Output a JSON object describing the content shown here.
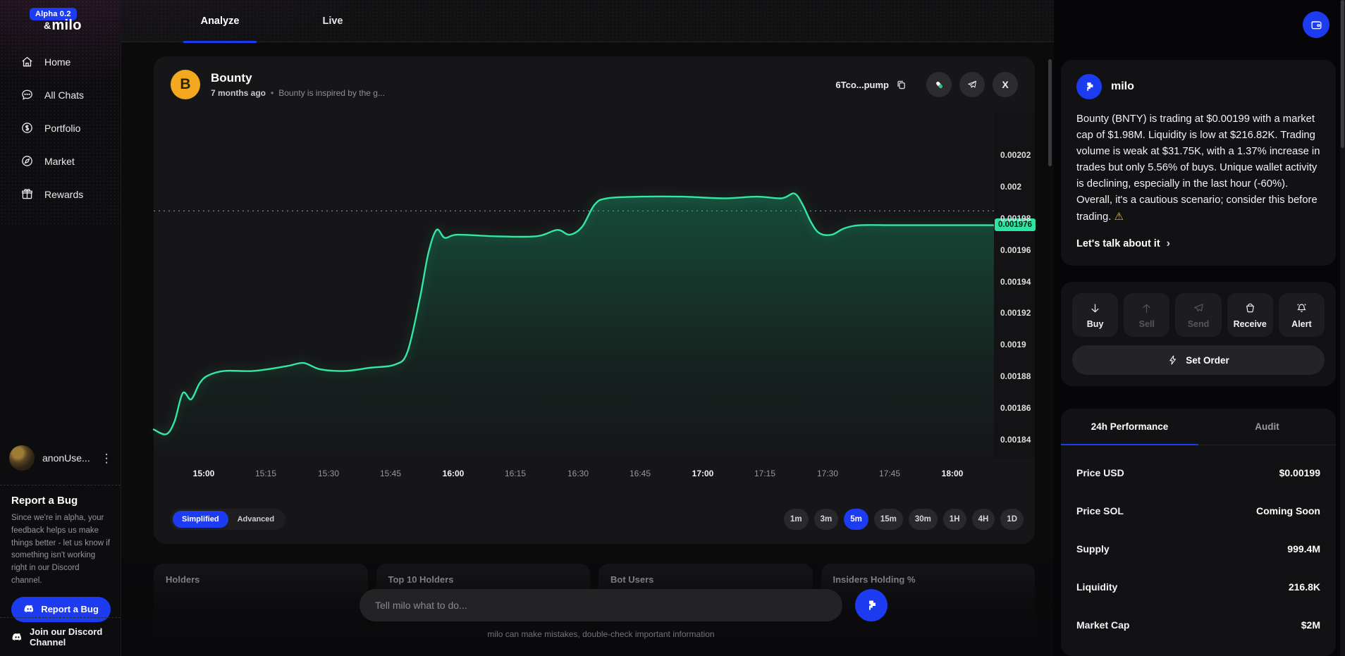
{
  "colors": {
    "accent_blue": "#1d3bf0",
    "chart_green": "#35e8a1",
    "price_badge_bg": "#2fe3a0",
    "token_orange": "#f3a81f"
  },
  "app": {
    "alpha_badge": "Alpha 0.2",
    "logo_amp": "&",
    "logo_name": "milo"
  },
  "sidebar": {
    "items": [
      {
        "label": "Home"
      },
      {
        "label": "All Chats"
      },
      {
        "label": "Portfolio"
      },
      {
        "label": "Market"
      },
      {
        "label": "Rewards"
      }
    ],
    "user": {
      "name": "anonUse...",
      "menu_glyph": "⋮"
    },
    "report_bug": {
      "title": "Report a Bug",
      "body": "Since we're in alpha, your feedback helps us make things better - let us know if something isn't working right in our Discord channel.",
      "button_label": "Report a Bug"
    },
    "discord_label": "Join our Discord Channel"
  },
  "topbar": {
    "tab_analyze": "Analyze",
    "tab_live": "Live"
  },
  "token": {
    "initial": "B",
    "name": "Bounty",
    "age": "7 months ago",
    "separator": "•",
    "description": "Bounty is inspired by the g...",
    "address": "6Tco...pump",
    "x_glyph": "X"
  },
  "chart": {
    "mode_simplified": "Simplified",
    "mode_advanced": "Advanced",
    "ranges": [
      "1m",
      "3m",
      "5m",
      "15m",
      "30m",
      "1H",
      "4H",
      "1D"
    ],
    "active_range": "5m"
  },
  "chart_data": {
    "type": "area",
    "title": "Bounty (BNTY) price, 5m view",
    "line_color": "#35e8a1",
    "xlim": [
      -12,
      190
    ],
    "ylim": [
      0.001829,
      0.002047
    ],
    "x_ticks": [
      {
        "label": "15:00",
        "t": 0,
        "bold": true
      },
      {
        "label": "15:15",
        "t": 15,
        "bold": false
      },
      {
        "label": "15:30",
        "t": 30,
        "bold": false
      },
      {
        "label": "15:45",
        "t": 45,
        "bold": false
      },
      {
        "label": "16:00",
        "t": 60,
        "bold": true
      },
      {
        "label": "16:15",
        "t": 75,
        "bold": false
      },
      {
        "label": "16:30",
        "t": 90,
        "bold": false
      },
      {
        "label": "16:45",
        "t": 105,
        "bold": false
      },
      {
        "label": "17:00",
        "t": 120,
        "bold": true
      },
      {
        "label": "17:15",
        "t": 135,
        "bold": false
      },
      {
        "label": "17:30",
        "t": 150,
        "bold": false
      },
      {
        "label": "17:45",
        "t": 165,
        "bold": false
      },
      {
        "label": "18:00",
        "t": 180,
        "bold": true
      }
    ],
    "y_ticks": [
      {
        "label": "0.00202",
        "value": 0.00202
      },
      {
        "label": "0.002",
        "value": 0.002
      },
      {
        "label": "0.00198",
        "value": 0.00198
      },
      {
        "label": "0.00196",
        "value": 0.00196
      },
      {
        "label": "0.00194",
        "value": 0.00194
      },
      {
        "label": "0.00192",
        "value": 0.00192
      },
      {
        "label": "0.0019",
        "value": 0.0019
      },
      {
        "label": "0.00188",
        "value": 0.00188
      },
      {
        "label": "0.00186",
        "value": 0.00186
      },
      {
        "label": "0.00184",
        "value": 0.00184
      }
    ],
    "reference_price": 0.001985,
    "current_price": {
      "label": "0.001976",
      "value": 0.001976
    },
    "points": [
      [
        -12,
        0.001847
      ],
      [
        -9,
        0.001844
      ],
      [
        -7,
        0.001852
      ],
      [
        -5,
        0.00187
      ],
      [
        -3,
        0.001866
      ],
      [
        -1,
        0.001876
      ],
      [
        1,
        0.001881
      ],
      [
        5,
        0.001884
      ],
      [
        12,
        0.001884
      ],
      [
        20,
        0.001887
      ],
      [
        24,
        0.001889
      ],
      [
        28,
        0.001885
      ],
      [
        34,
        0.001884
      ],
      [
        40,
        0.001886
      ],
      [
        46,
        0.001888
      ],
      [
        49,
        0.001896
      ],
      [
        52,
        0.00193
      ],
      [
        54,
        0.001958
      ],
      [
        56,
        0.001973
      ],
      [
        58,
        0.001968
      ],
      [
        61,
        0.00197
      ],
      [
        70,
        0.001969
      ],
      [
        80,
        0.001969
      ],
      [
        85,
        0.001973
      ],
      [
        88,
        0.00197
      ],
      [
        91,
        0.001975
      ],
      [
        94,
        0.001989
      ],
      [
        97,
        0.001993
      ],
      [
        105,
        0.001994
      ],
      [
        115,
        0.001994
      ],
      [
        125,
        0.001993
      ],
      [
        133,
        0.001994
      ],
      [
        139,
        0.001993
      ],
      [
        142,
        0.001996
      ],
      [
        144,
        0.001989
      ],
      [
        146,
        0.001978
      ],
      [
        148,
        0.001971
      ],
      [
        151,
        0.00197
      ],
      [
        154,
        0.001974
      ],
      [
        158,
        0.001976
      ],
      [
        166,
        0.001976
      ],
      [
        175,
        0.001976
      ],
      [
        183,
        0.001976
      ],
      [
        190,
        0.001976
      ]
    ]
  },
  "panels": [
    {
      "title": "Holders"
    },
    {
      "title": "Top 10 Holders"
    },
    {
      "title": "Bot Users"
    },
    {
      "title": "Insiders Holding %"
    }
  ],
  "chat": {
    "placeholder": "Tell milo what to do...",
    "disclaimer": "milo can make mistakes, double-check important information"
  },
  "assistant": {
    "name": "milo",
    "summary": "Bounty (BNTY) is trading at $0.00199 with a market cap of $1.98M. Liquidity is low at $216.82K. Trading volume is weak at $31.75K, with a 1.37% increase in trades but only 5.56% of buys. Unique wallet activity is declining, especially in the last hour (-60%). Overall, it's a cautious scenario; consider this before trading.",
    "warning_icon": "⚠",
    "cta": "Let's talk about it",
    "cta_chevron": "›"
  },
  "actions": {
    "buttons": [
      {
        "label": "Buy",
        "enabled": true
      },
      {
        "label": "Sell",
        "enabled": false
      },
      {
        "label": "Send",
        "enabled": false
      },
      {
        "label": "Receive",
        "enabled": true
      },
      {
        "label": "Alert",
        "enabled": true
      }
    ],
    "set_order_label": "Set Order"
  },
  "stats": {
    "tabs": [
      {
        "label": "24h Performance"
      },
      {
        "label": "Audit"
      }
    ],
    "rows": [
      {
        "label": "Price USD",
        "value": "$0.00199"
      },
      {
        "label": "Price SOL",
        "value": "Coming Soon"
      },
      {
        "label": "Supply",
        "value": "999.4M"
      },
      {
        "label": "Liquidity",
        "value": "216.8K"
      },
      {
        "label": "Market Cap",
        "value": "$2M"
      }
    ]
  }
}
